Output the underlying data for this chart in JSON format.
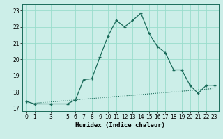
{
  "xlabel": "Humidex (Indice chaleur)",
  "ylabel": "",
  "background_color": "#cceee8",
  "grid_color": "#99ddcc",
  "line_color": "#1a6b5a",
  "xlim": [
    -0.5,
    23.5
  ],
  "ylim": [
    16.8,
    23.4
  ],
  "x_ticks": [
    0,
    1,
    3,
    5,
    6,
    7,
    8,
    9,
    10,
    11,
    12,
    13,
    14,
    15,
    16,
    17,
    18,
    19,
    20,
    21,
    22,
    23
  ],
  "y_ticks": [
    17,
    18,
    19,
    20,
    21,
    22,
    23
  ],
  "main_x": [
    0,
    1,
    3,
    5,
    6,
    7,
    8,
    9,
    10,
    11,
    12,
    13,
    14,
    15,
    16,
    17,
    18,
    19,
    20,
    21,
    22,
    23
  ],
  "main_y": [
    17.4,
    17.25,
    17.25,
    17.25,
    17.5,
    18.75,
    18.8,
    20.15,
    21.45,
    22.4,
    22.0,
    22.4,
    22.85,
    21.6,
    20.8,
    20.4,
    19.35,
    19.35,
    18.4,
    17.9,
    18.4,
    18.4
  ],
  "trend_x": [
    0,
    23
  ],
  "trend_y": [
    17.25,
    18.2
  ],
  "fontsize_label": 6.5,
  "fontsize_tick": 5.5
}
